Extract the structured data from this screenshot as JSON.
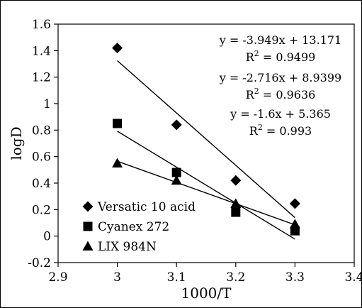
{
  "chart_data": {
    "type": "scatter",
    "title": "",
    "xlabel": "1000/T",
    "ylabel": "logD",
    "xlim": [
      2.9,
      3.4
    ],
    "ylim": [
      -0.2,
      1.6
    ],
    "x_ticks": [
      "2.9",
      "3",
      "3.1",
      "3.2",
      "3.3",
      "3.4"
    ],
    "y_ticks": [
      "-0.2",
      "0",
      "0.2",
      "0.4",
      "0.6",
      "0.8",
      "1",
      "1.2",
      "1.4",
      "1.6"
    ],
    "grid": false,
    "legend_position": "bottom-left",
    "series": [
      {
        "name": "Versatic 10 acid",
        "marker": "diamond",
        "x": [
          3.0,
          3.1,
          3.2,
          3.3
        ],
        "y": [
          1.42,
          0.84,
          0.42,
          0.245
        ],
        "trendline": {
          "slope": -3.949,
          "intercept": 13.171
        },
        "equation": "y = -3.949x + 13.171",
        "r2_label": "R",
        "r2_value": "= 0.9499"
      },
      {
        "name": "Cyanex 272",
        "marker": "square",
        "x": [
          3.0,
          3.1,
          3.2,
          3.3
        ],
        "y": [
          0.85,
          0.48,
          0.18,
          0.04
        ],
        "trendline": {
          "slope": -2.716,
          "intercept": 8.9399
        },
        "equation": "y = -2.716x + 8.9399",
        "r2_label": "R",
        "r2_value": "= 0.9636"
      },
      {
        "name": "LIX 984N",
        "marker": "triangle",
        "x": [
          3.0,
          3.1,
          3.2,
          3.3
        ],
        "y": [
          0.55,
          0.42,
          0.245,
          0.09
        ],
        "trendline": {
          "slope": -1.6,
          "intercept": 5.365
        },
        "equation": "y = -1.6x + 5.365",
        "r2_label": "R",
        "r2_value": "= 0.993"
      }
    ],
    "r2_superscript": "2"
  }
}
